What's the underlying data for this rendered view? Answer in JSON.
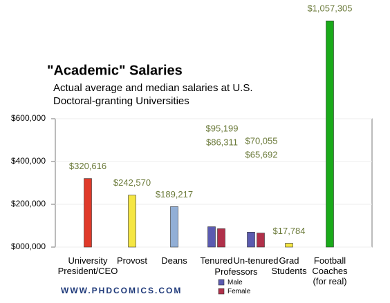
{
  "chart_data": {
    "type": "bar",
    "title": "\"Academic\" Salaries",
    "subtitle": [
      "Actual average and median salaries at U.S.",
      "Doctoral-granting Universities"
    ],
    "categories": [
      "University President/CEO",
      "Provost",
      "Deans",
      "Tenured",
      "Un-tenured",
      "Grad Students",
      "Football Coaches (for real)"
    ],
    "category_note": "Professors",
    "values": [
      320616,
      242570,
      189217,
      null,
      null,
      17784,
      1057305
    ],
    "value_labels": [
      "$320,616",
      "$242,570",
      "$189,217",
      null,
      null,
      "$17,784",
      "$1,057,305"
    ],
    "colors": [
      "#e03a2a",
      "#f5e642",
      "#92afd6",
      null,
      null,
      "#f5e642",
      "#1aaa1a"
    ],
    "series": [
      {
        "name": "Male",
        "color": "#5b5bb0",
        "values": [
          null,
          null,
          null,
          95199,
          70055,
          null,
          null
        ],
        "value_labels": [
          null,
          null,
          null,
          "$95,199",
          "$70,055",
          null,
          null
        ]
      },
      {
        "name": "Female",
        "color": "#b0304a",
        "values": [
          null,
          null,
          null,
          86311,
          65692,
          null,
          null
        ],
        "value_labels": [
          null,
          null,
          null,
          "$86,311",
          "$65,692",
          null,
          null
        ]
      }
    ],
    "ylim": [
      0,
      600000
    ],
    "yticks": [
      {
        "value": 0,
        "label": "$000,000"
      },
      {
        "value": 200000,
        "label": "$200,000"
      },
      {
        "value": 400000,
        "label": "$400,000"
      },
      {
        "value": 600000,
        "label": "$600,000"
      }
    ],
    "grid": true,
    "footer": "WWW.PHDCOMICS.COM"
  }
}
